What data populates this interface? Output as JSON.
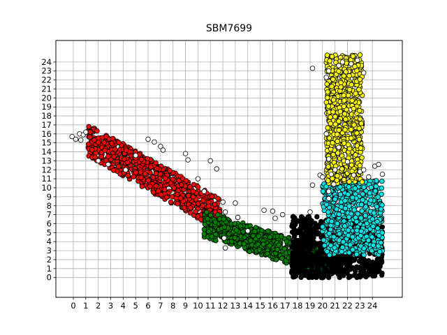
{
  "chart_data": {
    "type": "scatter",
    "title": "SBM7699",
    "xlabel": "",
    "ylabel": "",
    "xlim": [
      -1.4,
      26.4
    ],
    "ylim": [
      -2.2,
      26.4
    ],
    "grid": true,
    "x_ticks": [
      "0",
      "1",
      "2",
      "3",
      "4",
      "5",
      "6",
      "7",
      "8",
      "9",
      "10",
      "11",
      "12",
      "13",
      "14",
      "15",
      "16",
      "17",
      "18",
      "19",
      "20",
      "21",
      "22",
      "23",
      "24"
    ],
    "y_ticks": [
      "0",
      "1",
      "2",
      "3",
      "4",
      "5",
      "6",
      "7",
      "8",
      "9",
      "10",
      "11",
      "12",
      "13",
      "14",
      "15",
      "16",
      "17",
      "18",
      "19",
      "20",
      "21",
      "22",
      "23",
      "24"
    ],
    "series": [
      {
        "color": "#ff0000",
        "description": "diagonal band",
        "region": {
          "x_from": 1.2,
          "x_to": 11.8,
          "y_at_start": 15.3,
          "y_at_end": 7.0,
          "thickness": 3.6
        }
      },
      {
        "color": "#008000",
        "description": "lower band",
        "region": {
          "x_from": 10.5,
          "x_to": 20.5,
          "y_at_start": 6.0,
          "y_at_end": 1.6,
          "thickness": 3.0
        }
      },
      {
        "color": "#000000",
        "description": "bottom cluster",
        "region": {
          "x_min": 17.5,
          "x_max": 24.8,
          "y_min": 0.0,
          "y_max": 6.8
        }
      },
      {
        "color": "#00e5e5",
        "description": "right cluster",
        "region": {
          "x_min": 20.0,
          "x_max": 24.8,
          "y_min": 2.5,
          "y_max": 10.8
        }
      },
      {
        "color": "#ffff00",
        "description": "upper cluster",
        "region": {
          "x_min": 20.3,
          "x_max": 23.2,
          "y_min": 10.5,
          "y_max": 24.8
        }
      },
      {
        "color": "#ffffff",
        "description": "outliers",
        "points": [
          [
            -0.1,
            15.7
          ],
          [
            0.2,
            15.4
          ],
          [
            0.5,
            16.0
          ],
          [
            0.8,
            15.9
          ],
          [
            1.0,
            16.2
          ],
          [
            0.6,
            15.3
          ],
          [
            2.0,
            13.0
          ],
          [
            2.8,
            12.6
          ],
          [
            4.2,
            12.0
          ],
          [
            5.0,
            13.6
          ],
          [
            6.0,
            15.4
          ],
          [
            6.5,
            15.1
          ],
          [
            7.0,
            14.6
          ],
          [
            7.2,
            14.2
          ],
          [
            9.0,
            13.8
          ],
          [
            9.2,
            13.1
          ],
          [
            10.0,
            11.0
          ],
          [
            10.5,
            9.6
          ],
          [
            11.0,
            13.0
          ],
          [
            11.5,
            12.1
          ],
          [
            12.0,
            8.4
          ],
          [
            12.2,
            7.3
          ],
          [
            13.0,
            8.3
          ],
          [
            13.2,
            6.7
          ],
          [
            12.1,
            4.4
          ],
          [
            12.2,
            3.3
          ],
          [
            14.0,
            5.2
          ],
          [
            15.3,
            7.5
          ],
          [
            16.0,
            7.4
          ],
          [
            16.2,
            6.6
          ],
          [
            16.8,
            7.0
          ],
          [
            19.0,
            7.3
          ],
          [
            19.8,
            11.4
          ],
          [
            20.0,
            11.2
          ],
          [
            19.2,
            10.3
          ],
          [
            20.5,
            9.6
          ],
          [
            20.5,
            8.8
          ],
          [
            20.9,
            10.4
          ],
          [
            20.3,
            16.0
          ],
          [
            20.5,
            13.2
          ],
          [
            21.0,
            12.0
          ],
          [
            20.7,
            11.5
          ],
          [
            21.3,
            14.5
          ],
          [
            22.0,
            12.9
          ],
          [
            22.5,
            11.4
          ],
          [
            23.0,
            11.8
          ],
          [
            23.3,
            12.0
          ],
          [
            23.7,
            11.2
          ],
          [
            24.2,
            12.4
          ],
          [
            24.5,
            12.6
          ],
          [
            24.8,
            11.5
          ],
          [
            19.2,
            23.3
          ],
          [
            20.5,
            23.0
          ],
          [
            21.3,
            23.6
          ],
          [
            21.6,
            24.0
          ],
          [
            22.3,
            23.8
          ],
          [
            22.8,
            24.2
          ],
          [
            23.3,
            22.8
          ],
          [
            20.3,
            22.3
          ]
        ]
      }
    ]
  }
}
